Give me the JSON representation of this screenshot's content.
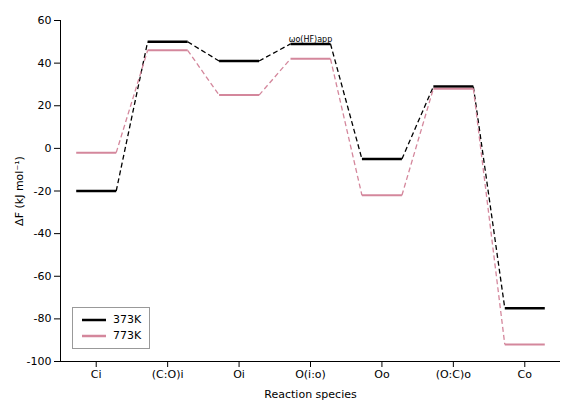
{
  "chart_data": {
    "type": "levels",
    "xlabel": "Reaction species",
    "ylabel": "ΔF (kJ mol⁻¹)",
    "categories": [
      "Ci",
      "(C:O)i",
      "Oi",
      "O(i:o)",
      "Oo",
      "(O:C)o",
      "Co"
    ],
    "series": [
      {
        "name": "373K",
        "color": "#000000",
        "values": [
          -20,
          50,
          41,
          49,
          -5,
          29,
          -75
        ]
      },
      {
        "name": "773K",
        "color": "#d4879c",
        "values": [
          -2,
          46,
          25,
          42,
          -22,
          28,
          -92
        ]
      }
    ],
    "ylim": [
      -100,
      60
    ],
    "yticks": [
      -100,
      -80,
      -60,
      -40,
      -20,
      0,
      20,
      40,
      60
    ],
    "grid": false,
    "legend": "lower left",
    "annotations": [
      {
        "text": "ωo(HF)app",
        "x": "O(i:o)",
        "y": 48.5
      }
    ]
  }
}
